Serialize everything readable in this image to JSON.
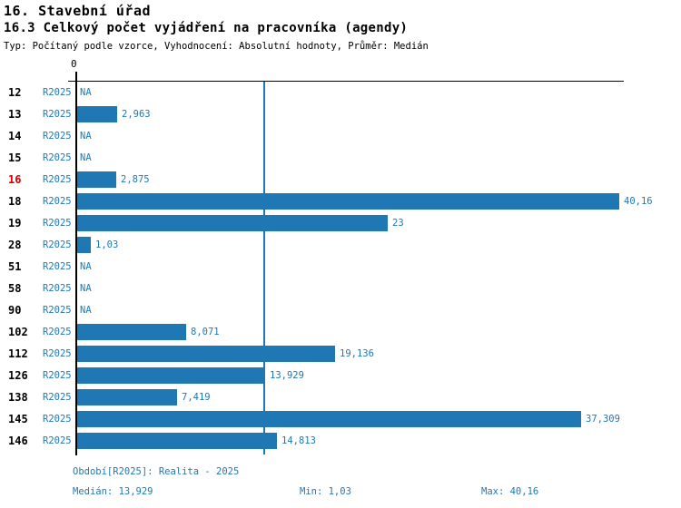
{
  "header": {
    "title": "16. Stavební úřad",
    "subtitle": "16.3 Celkový počet vyjádření na pracovníka (agendy)",
    "meta": "Typ: Počítaný podle vzorce, Vyhodnocení: Absolutní hodnoty, Průměr: Medián"
  },
  "chart_data": {
    "type": "bar",
    "orientation": "horizontal",
    "series_label": "R2025",
    "categories": [
      "12",
      "13",
      "14",
      "15",
      "16",
      "18",
      "19",
      "28",
      "51",
      "58",
      "90",
      "102",
      "112",
      "126",
      "138",
      "145",
      "146"
    ],
    "values": [
      null,
      2.963,
      null,
      null,
      2.875,
      40.16,
      23,
      1.03,
      null,
      null,
      null,
      8.071,
      19.136,
      13.929,
      7.419,
      37.309,
      14.813
    ],
    "value_labels": [
      "NA",
      "2,963",
      "NA",
      "NA",
      "2,875",
      "40,16",
      "23",
      "1,03",
      "NA",
      "NA",
      "NA",
      "8,071",
      "19,136",
      "13,929",
      "7,419",
      "37,309",
      "14,813"
    ],
    "na_label": "NA",
    "highlighted_category": "16",
    "xlim": [
      0,
      40.16
    ],
    "x_tick_labels": [
      "0"
    ],
    "median_value": 13.929,
    "median_line": true,
    "grid": false,
    "legend": "none"
  },
  "footer": {
    "period": "Období[R2025]: Realita - 2025",
    "median": "Medián: 13,929",
    "min": "Min: 1,03",
    "max": "Max: 40,16"
  },
  "colors": {
    "bar": "#1F77B4",
    "text_blue": "#1F77B4",
    "median_line": "#1F77B4",
    "highlight_red": "#DD0000",
    "axis": "#000000",
    "background": "#FFFFFF"
  }
}
